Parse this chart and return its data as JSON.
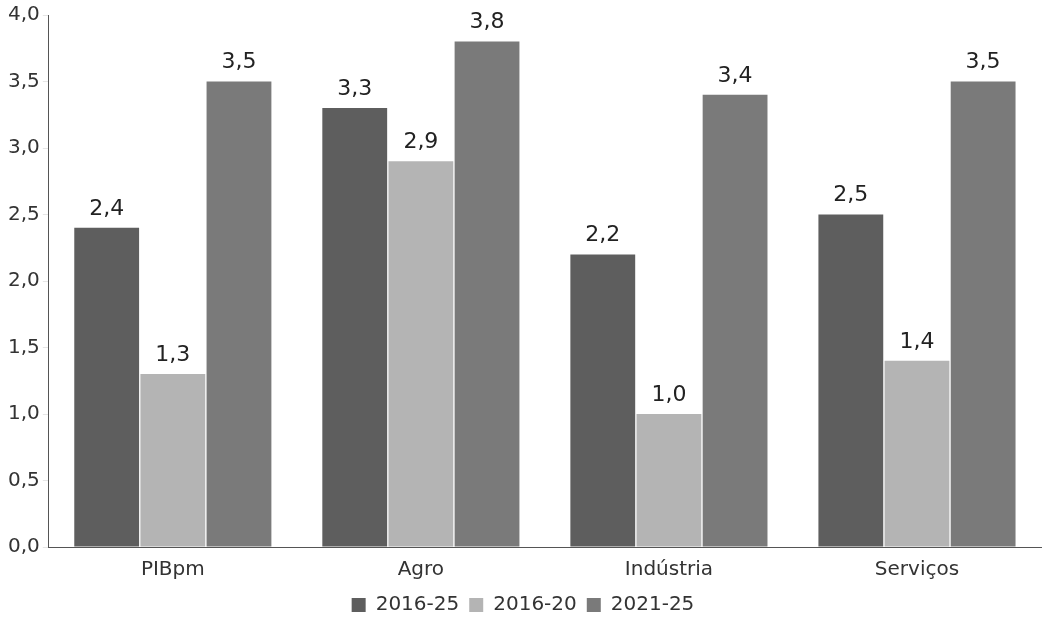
{
  "chart_data": {
    "type": "bar",
    "categories": [
      "PIBpm",
      "Agro",
      "Indústria",
      "Serviços"
    ],
    "series": [
      {
        "name": "2016-25",
        "color": "#5e5e5e",
        "values": [
          2.4,
          3.3,
          2.2,
          2.5
        ],
        "value_labels": [
          "2,4",
          "3,3",
          "2,2",
          "2,5"
        ]
      },
      {
        "name": "2016-20",
        "color": "#b4b4b4",
        "values": [
          1.3,
          2.9,
          1.0,
          1.4
        ],
        "value_labels": [
          "1,3",
          "2,9",
          "1,0",
          "1,4"
        ]
      },
      {
        "name": "2021-25",
        "color": "#7a7a7a",
        "values": [
          3.5,
          3.8,
          3.4,
          3.5
        ],
        "value_labels": [
          "3,5",
          "3,8",
          "3,4",
          "3,5"
        ]
      }
    ],
    "ylim": [
      0,
      4
    ],
    "yticks": [
      {
        "value": 0,
        "label": "0,0"
      },
      {
        "value": 0.5,
        "label": "0,5"
      },
      {
        "value": 1,
        "label": "1,0"
      },
      {
        "value": 1.5,
        "label": "1,5"
      },
      {
        "value": 2,
        "label": "2,0"
      },
      {
        "value": 2.5,
        "label": "2,5"
      },
      {
        "value": 3,
        "label": "3,0"
      },
      {
        "value": 3.5,
        "label": "3,5"
      },
      {
        "value": 4,
        "label": "4,0"
      }
    ],
    "grid": false,
    "legend": "bottom"
  }
}
